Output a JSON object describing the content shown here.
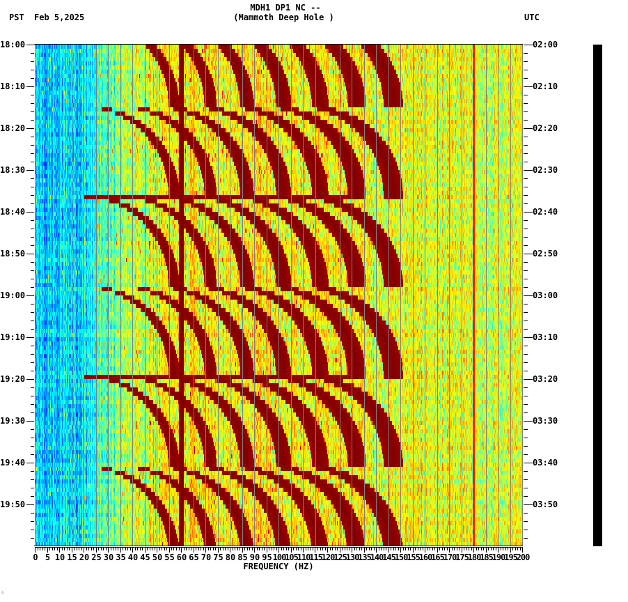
{
  "header": {
    "title_line1": "MDH1 DP1 NC --",
    "title_line2": "(Mammoth Deep Hole )",
    "left_timezone": "PST",
    "date": "Feb 5,2025",
    "right_timezone": "UTC"
  },
  "footer": {
    "corner_mark": "∴"
  },
  "chart_data": {
    "type": "heatmap",
    "title": "MDH1 DP1 NC -- (Mammoth Deep Hole )",
    "subtitle": "Feb 5,2025",
    "xlabel": "FREQUENCY (HZ)",
    "ylabel_left": "PST",
    "ylabel_right": "UTC",
    "xlim": [
      0,
      200
    ],
    "x_ticks": [
      0,
      5,
      10,
      15,
      20,
      25,
      30,
      35,
      40,
      45,
      50,
      55,
      60,
      65,
      70,
      75,
      80,
      85,
      90,
      95,
      100,
      105,
      110,
      115,
      120,
      125,
      130,
      135,
      140,
      145,
      150,
      155,
      160,
      165,
      170,
      175,
      180,
      185,
      190,
      195,
      200
    ],
    "x_tick_labels": [
      "0",
      "5",
      "10",
      "15",
      "20",
      "25",
      "30",
      "35",
      "40",
      "45",
      "50",
      "55",
      "60",
      "65",
      "70",
      "75",
      "80",
      "85",
      "90",
      "95",
      "100",
      "105",
      "110",
      "115",
      "120",
      "125",
      "130",
      "135",
      "140",
      "145",
      "150",
      "155",
      "160",
      "165",
      "170",
      "175",
      "180",
      "185",
      "190",
      "195",
      "200"
    ],
    "x_minor_tick_step_hz": 1,
    "y_range_minutes": 120,
    "y_left_tick_labels": [
      "18:00",
      "18:10",
      "18:20",
      "18:30",
      "18:40",
      "18:50",
      "19:00",
      "19:10",
      "19:20",
      "19:30",
      "19:40",
      "19:50"
    ],
    "y_right_tick_labels": [
      "02:00",
      "02:10",
      "02:20",
      "02:30",
      "02:40",
      "02:50",
      "03:00",
      "03:10",
      "03:20",
      "03:30",
      "03:40",
      "03:50"
    ],
    "y_major_tick_step_min": 10,
    "y_minor_tick_step_min": 2,
    "grid": {
      "vertical_lines_every_hz": 5,
      "color": "#808080"
    },
    "colormap": "jet",
    "colormap_stops": [
      "#00008f",
      "#0000ff",
      "#0080ff",
      "#00ffff",
      "#80ff80",
      "#ffff00",
      "#ff8000",
      "#ff0000",
      "#800000"
    ],
    "features": {
      "persistent_line_hz": 60,
      "secondary_faint_line_hz": 180,
      "low_freq_band": {
        "from_hz": 0,
        "to_hz": 20,
        "level": "low (blue)"
      },
      "mid_band": {
        "from_hz": 20,
        "to_hz": 130,
        "level": "high (yellow/red)"
      },
      "high_band": {
        "from_hz": 130,
        "to_hz": 200,
        "level": "moderate (yellow/green)"
      },
      "event_cycle_starts_min": [
        15,
        36.5,
        58,
        79.5,
        101
      ],
      "event_cycle_period_min": 21.5,
      "harmonic_arc_count": 7,
      "arc_description": "Curved dark-red harmonic arcs sweep upward in frequency over each cycle, starting near 20-45 Hz and reaching ~125 Hz at the cycle end"
    }
  }
}
